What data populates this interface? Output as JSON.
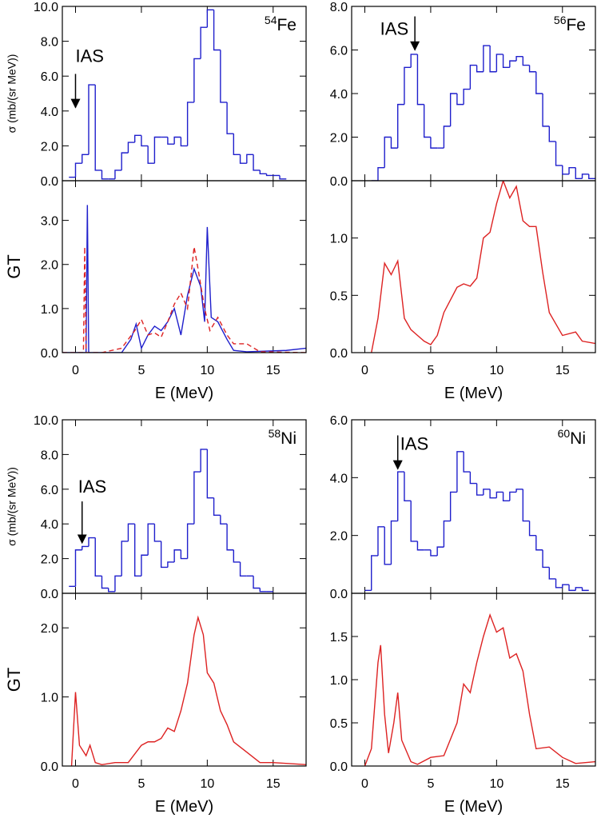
{
  "chart_data": [
    {
      "type": "line",
      "ylabel": "σ (mb/(sr MeV))",
      "xlim": [
        -1,
        17.5
      ],
      "ylim": [
        0,
        10
      ],
      "yticks": [
        {
          "value": 0,
          "label": "0.0"
        },
        {
          "value": 2,
          "label": "2.0"
        },
        {
          "value": 4,
          "label": "4.0"
        },
        {
          "value": 6,
          "label": "6.0"
        },
        {
          "value": 8,
          "label": "8.0"
        },
        {
          "value": 10,
          "label": "10.0"
        }
      ],
      "nucleus": {
        "mass": "54",
        "symbol": "Fe"
      },
      "annotation": {
        "text": "IAS",
        "x": 0,
        "y": 4.2
      },
      "series": [
        {
          "color": "#1f1fcc",
          "step": true,
          "x": [
            -0.5,
            0,
            0.5,
            1,
            1.5,
            2,
            2.5,
            3,
            3.5,
            4,
            4.5,
            5,
            5.5,
            6,
            6.5,
            7,
            7.5,
            8,
            8.5,
            9,
            9.5,
            10,
            10.5,
            11,
            11.5,
            12,
            12.5,
            13,
            13.5,
            14,
            14.5,
            15,
            15.5
          ],
          "values": [
            0.2,
            1.0,
            1.5,
            5.5,
            0.6,
            0.1,
            0.1,
            0.6,
            1.6,
            2.2,
            2.6,
            2.0,
            1.0,
            2.5,
            2.5,
            2.1,
            2.5,
            2.0,
            4.5,
            7.0,
            8.8,
            9.8,
            7.5,
            4.5,
            2.7,
            1.5,
            1.0,
            1.5,
            0.6,
            0.4,
            0.3,
            0.3,
            0.1
          ]
        }
      ]
    },
    {
      "type": "line",
      "ylabel": "GT",
      "xlabel": "E (MeV)",
      "xlim": [
        -1,
        17.5
      ],
      "ylim": [
        0,
        3.9
      ],
      "xticks": [
        0,
        5,
        10,
        15
      ],
      "yticks": [
        {
          "value": 0,
          "label": "0.0"
        },
        {
          "value": 1,
          "label": "1.0"
        },
        {
          "value": 2,
          "label": "2.0"
        },
        {
          "value": 3,
          "label": "3.0"
        }
      ],
      "series": [
        {
          "color": "#1f1fcc",
          "x": [
            -1,
            0.8,
            0.9,
            1.0,
            3.5,
            4.2,
            4.6,
            5,
            5.5,
            6,
            6.5,
            7,
            7.5,
            8,
            8.5,
            9,
            9.5,
            9.8,
            10,
            10.3,
            10.8,
            11.5,
            12,
            13,
            16,
            17.5
          ],
          "values": [
            0,
            0,
            3.35,
            0,
            0,
            0.3,
            0.65,
            0.1,
            0.4,
            0.6,
            0.5,
            0.7,
            1.0,
            0.4,
            1.3,
            1.9,
            1.5,
            0.7,
            2.85,
            0.8,
            0.7,
            0.3,
            0.05,
            0.02,
            0.05,
            0.1
          ]
        },
        {
          "color": "#dd2222",
          "dash": true,
          "x": [
            -1,
            0.6,
            0.7,
            0.8,
            2,
            3.5,
            4.5,
            5,
            5.5,
            6,
            6.5,
            7,
            7.5,
            8,
            8.5,
            9,
            9.3,
            9.8,
            10.2,
            10.8,
            11.5,
            12,
            13,
            14,
            17.5
          ],
          "values": [
            0,
            0,
            2.4,
            0,
            0,
            0.1,
            0.5,
            0.75,
            0.4,
            0.45,
            0.35,
            0.7,
            1.1,
            1.35,
            1.0,
            2.4,
            1.9,
            1.0,
            0.5,
            0.8,
            0.4,
            0.2,
            0.2,
            0.02,
            0
          ]
        }
      ]
    },
    {
      "type": "line",
      "xlim": [
        -1,
        17.5
      ],
      "ylim": [
        0,
        8
      ],
      "yticks": [
        {
          "value": 0,
          "label": "0.0"
        },
        {
          "value": 2,
          "label": "2.0"
        },
        {
          "value": 4,
          "label": "4.0"
        },
        {
          "value": 6,
          "label": "6.0"
        },
        {
          "value": 8,
          "label": "8.0"
        }
      ],
      "nucleus": {
        "mass": "56",
        "symbol": "Fe"
      },
      "annotation": {
        "text": "IAS",
        "x": 3.8,
        "y": 6.0
      },
      "series": [
        {
          "color": "#1f1fcc",
          "step": true,
          "x": [
            0.5,
            1,
            1.5,
            2,
            2.5,
            3,
            3.5,
            4,
            4.5,
            5,
            5.5,
            6,
            6.5,
            7,
            7.5,
            8,
            8.5,
            9,
            9.5,
            10,
            10.5,
            11,
            11.5,
            12,
            12.5,
            13,
            13.5,
            14,
            14.5,
            15,
            15.5,
            16,
            16.5,
            17
          ],
          "values": [
            0,
            0.6,
            2.0,
            1.5,
            3.5,
            5.2,
            5.8,
            3.5,
            2.0,
            1.5,
            1.5,
            2.5,
            4.0,
            3.5,
            4.2,
            5.3,
            5.0,
            6.2,
            5.0,
            5.8,
            5.2,
            5.5,
            5.7,
            5.3,
            5.0,
            4.0,
            2.5,
            1.8,
            0.7,
            0.3,
            0.6,
            0.1,
            0.3,
            0.1
          ]
        }
      ]
    },
    {
      "type": "line",
      "xlabel": "E (MeV)",
      "xlim": [
        -1,
        17.5
      ],
      "ylim": [
        0,
        1.5
      ],
      "xticks": [
        0,
        5,
        10,
        15
      ],
      "yticks": [
        {
          "value": 0,
          "label": "0.0"
        },
        0.5,
        {
          "value": 1,
          "label": "1.0"
        }
      ],
      "series": [
        {
          "color": "#dd2222",
          "x": [
            0.5,
            1,
            1.5,
            2,
            2.5,
            3,
            3.5,
            4,
            4.5,
            5,
            5.5,
            6,
            7,
            7.5,
            8,
            8.5,
            9,
            9.5,
            10,
            10.5,
            11,
            11.5,
            12,
            12.5,
            13,
            13.5,
            14,
            14.5,
            15,
            16,
            16.5,
            17.5
          ],
          "values": [
            0,
            0.3,
            0.78,
            0.68,
            0.8,
            0.3,
            0.2,
            0.15,
            0.1,
            0.07,
            0.15,
            0.35,
            0.57,
            0.6,
            0.58,
            0.65,
            1.0,
            1.05,
            1.3,
            1.5,
            1.35,
            1.45,
            1.15,
            1.1,
            1.1,
            0.7,
            0.35,
            0.25,
            0.15,
            0.18,
            0.1,
            0.08
          ]
        }
      ]
    },
    {
      "type": "line",
      "ylabel": "σ (mb/(sr MeV))",
      "xlim": [
        -1,
        17.5
      ],
      "ylim": [
        0,
        10
      ],
      "yticks": [
        {
          "value": 0,
          "label": "0.0"
        },
        {
          "value": 2,
          "label": "2.0"
        },
        {
          "value": 4,
          "label": "4.0"
        },
        {
          "value": 6,
          "label": "6.0"
        },
        {
          "value": 8,
          "label": "8.0"
        },
        {
          "value": 10,
          "label": "10.0"
        }
      ],
      "nucleus": {
        "mass": "58",
        "symbol": "Ni"
      },
      "annotation": {
        "text": "IAS",
        "x": 0.5,
        "y": 2.9
      },
      "series": [
        {
          "color": "#1f1fcc",
          "step": true,
          "x": [
            -0.5,
            0,
            0.5,
            1,
            1.5,
            2,
            2.5,
            3,
            3.5,
            4,
            4.5,
            5,
            5.5,
            6,
            6.5,
            7,
            7.5,
            8,
            8.5,
            9,
            9.5,
            10,
            10.5,
            11,
            11.5,
            12,
            12.5,
            13,
            13.5,
            14,
            14.5
          ],
          "values": [
            0.4,
            2.5,
            2.7,
            3.2,
            1.0,
            0.3,
            0.1,
            1.0,
            3.0,
            4.0,
            1.0,
            2.2,
            4.0,
            3.0,
            1.5,
            1.8,
            2.5,
            2.0,
            4.0,
            7.0,
            8.3,
            5.5,
            4.5,
            4.0,
            2.5,
            1.8,
            1.0,
            1.0,
            0.3,
            0.1,
            0.1
          ]
        }
      ]
    },
    {
      "type": "line",
      "ylabel": "GT",
      "xlabel": "E (MeV)",
      "xlim": [
        -1,
        17.5
      ],
      "ylim": [
        0,
        2.5
      ],
      "xticks": [
        0,
        5,
        10,
        15
      ],
      "yticks": [
        {
          "value": 0,
          "label": "0.0"
        },
        {
          "value": 1,
          "label": "1.0"
        },
        {
          "value": 2,
          "label": "2.0"
        }
      ],
      "series": [
        {
          "color": "#dd2222",
          "x": [
            -0.3,
            0,
            0.3,
            0.8,
            1.1,
            1.5,
            2,
            3,
            4,
            5,
            5.5,
            6,
            6.5,
            7,
            7.5,
            8,
            8.5,
            9,
            9.3,
            9.7,
            10,
            10.5,
            11,
            11.5,
            12,
            13,
            14,
            15,
            17.5
          ],
          "values": [
            0,
            1.07,
            0.3,
            0.15,
            0.3,
            0.05,
            0.02,
            0.05,
            0.05,
            0.3,
            0.35,
            0.35,
            0.4,
            0.55,
            0.5,
            0.8,
            1.2,
            1.9,
            2.15,
            1.9,
            1.35,
            1.2,
            0.8,
            0.6,
            0.35,
            0.2,
            0.05,
            0.05,
            0.02
          ]
        }
      ]
    },
    {
      "type": "line",
      "xlim": [
        -1,
        17.5
      ],
      "ylim": [
        0,
        6
      ],
      "yticks": [
        {
          "value": 0,
          "label": "0.0"
        },
        {
          "value": 2,
          "label": "2.0"
        },
        {
          "value": 4,
          "label": "4.0"
        },
        {
          "value": 6,
          "label": "6.0"
        }
      ],
      "nucleus": {
        "mass": "60",
        "symbol": "Ni"
      },
      "annotation": {
        "text": "IAS",
        "x": 2.5,
        "y": 4.3
      },
      "series": [
        {
          "color": "#1f1fcc",
          "step": true,
          "x": [
            0,
            0.5,
            1,
            1.5,
            2,
            2.5,
            3,
            3.5,
            4,
            4.5,
            5,
            5.5,
            6,
            6.5,
            7,
            7.5,
            8,
            8.5,
            9,
            9.5,
            10,
            10.5,
            11,
            11.5,
            12,
            12.5,
            13,
            13.5,
            14,
            14.5,
            15,
            15.5,
            16,
            16.5
          ],
          "values": [
            0.1,
            1.3,
            2.3,
            1.0,
            2.5,
            4.2,
            3.2,
            1.8,
            1.5,
            1.5,
            1.3,
            1.6,
            2.5,
            3.5,
            4.9,
            4.2,
            3.8,
            3.4,
            3.6,
            3.3,
            3.5,
            3.2,
            3.5,
            3.6,
            2.5,
            2.0,
            1.5,
            0.9,
            0.5,
            0.2,
            0.3,
            0.1,
            0.2,
            0.1
          ]
        }
      ]
    },
    {
      "type": "line",
      "xlabel": "E (MeV)",
      "xlim": [
        -1,
        17.5
      ],
      "ylim": [
        0,
        2
      ],
      "xticks": [
        0,
        5,
        10,
        15
      ],
      "yticks": [
        {
          "value": 0,
          "label": "0.0"
        },
        0.5,
        {
          "value": 1,
          "label": "1.0"
        },
        1.5
      ],
      "series": [
        {
          "color": "#dd2222",
          "x": [
            0,
            0.5,
            1,
            1.2,
            1.5,
            1.8,
            2.2,
            2.5,
            2.8,
            3.5,
            4,
            5,
            6,
            7,
            7.5,
            8,
            8.5,
            9,
            9.5,
            10,
            10.5,
            11,
            11.5,
            12,
            12.5,
            13,
            14,
            15,
            16,
            17.5
          ],
          "values": [
            0,
            0.2,
            1.2,
            1.4,
            0.6,
            0.15,
            0.5,
            0.85,
            0.3,
            0.05,
            0.02,
            0.1,
            0.12,
            0.5,
            0.95,
            0.85,
            1.2,
            1.5,
            1.75,
            1.55,
            1.6,
            1.25,
            1.3,
            1.1,
            0.6,
            0.2,
            0.22,
            0.1,
            0.03,
            0.05
          ]
        }
      ]
    }
  ]
}
